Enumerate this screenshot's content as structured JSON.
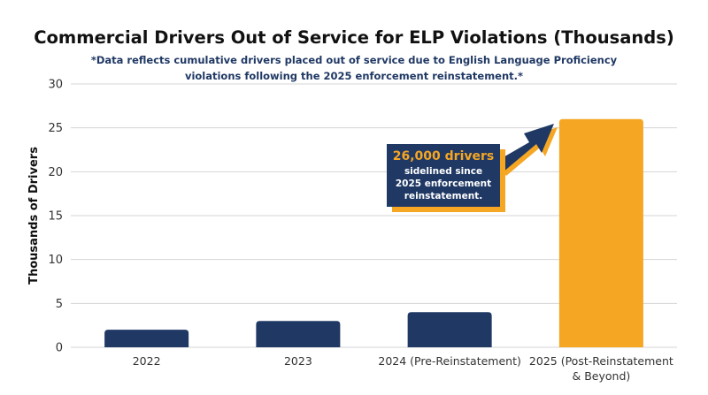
{
  "title": "Commercial Drivers Out of Service for ELP Violations (Thousands)",
  "subtitle": "*Data reflects cumulative drivers placed out of service due to English Language Proficiency violations following the 2025 enforcement reinstatement.*",
  "callout": {
    "headline": "26,000 drivers",
    "body": "sidelined since 2025 enforcement reinstatement."
  },
  "colors": {
    "navy": "#1f3864",
    "gold": "#f5a623",
    "grid": "#d4d4d4"
  },
  "chart_data": {
    "type": "bar",
    "title": "Commercial Drivers Out of Service for ELP Violations (Thousands)",
    "ylabel": "Thousands of Drivers",
    "xlabel": "",
    "ylim": [
      0,
      30
    ],
    "yticks": [
      0,
      5,
      10,
      15,
      20,
      25,
      30
    ],
    "grid": true,
    "categories": [
      [
        "2022"
      ],
      [
        "2023"
      ],
      [
        "2024 (Pre-Reinstatement)"
      ],
      [
        "2025 (Post-Reinstatement",
        "& Beyond)"
      ]
    ],
    "values": [
      2,
      3,
      4,
      26
    ],
    "bar_colors": [
      "#1f3864",
      "#1f3864",
      "#1f3864",
      "#f5a623"
    ]
  }
}
